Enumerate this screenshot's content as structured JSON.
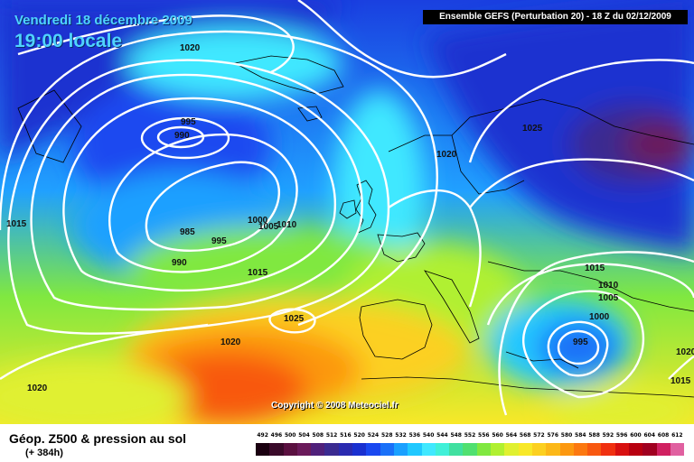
{
  "header": {
    "date": "Vendredi 18 décembre 2009",
    "time": "19:00 locale",
    "run_info": "Ensemble GEFS (Perturbation 20)  -  18 Z du 02/12/2009"
  },
  "copyright": "Copyright © 2008 Meteociel.fr",
  "footer": {
    "title": "Géop. Z500 & pression au sol",
    "subtitle": "(+ 384h)"
  },
  "isobar_labels": [
    "1020",
    "995",
    "990",
    "1015",
    "985",
    "995",
    "1000",
    "1010",
    "1005",
    "990",
    "1015",
    "1025",
    "1020",
    "1020",
    "1020",
    "1025",
    "1015",
    "1010",
    "1005",
    "1000",
    "995",
    "1015",
    "1020"
  ],
  "legend": {
    "values": [
      "492",
      "496",
      "500",
      "504",
      "508",
      "512",
      "516",
      "520",
      "524",
      "528",
      "532",
      "536",
      "540",
      "544",
      "548",
      "552",
      "556",
      "560",
      "564",
      "568",
      "572",
      "576",
      "580",
      "584",
      "588",
      "592",
      "596",
      "600",
      "604",
      "608",
      "612"
    ],
    "colors": [
      "#1a0010",
      "#3a0a2a",
      "#5a1040",
      "#6a1a5a",
      "#50207a",
      "#3a2a90",
      "#2a2ab0",
      "#1a30d0",
      "#1a48f0",
      "#1a70f8",
      "#1aa0ff",
      "#20c8ff",
      "#40e8ff",
      "#40f0d8",
      "#40e0a0",
      "#50e070",
      "#80e840",
      "#b0f030",
      "#e0f030",
      "#f8e828",
      "#fcd020",
      "#fcb818",
      "#fc9810",
      "#fc7810",
      "#f85810",
      "#f03010",
      "#d81010",
      "#b80010",
      "#a00020",
      "#d02060",
      "#e060a0"
    ]
  }
}
